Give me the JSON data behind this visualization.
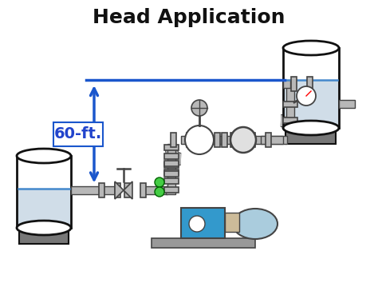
{
  "title": "Head Application",
  "title_fontsize": 18,
  "title_color": "#111111",
  "bg_color": "#ffffff",
  "blue_line_color": "#1a56cc",
  "water_color": "#d0dde8",
  "water_line_color": "#4488cc",
  "pipe_color": "#b8b8b8",
  "pipe_edge_color": "#444444",
  "pump_blue": "#3399cc",
  "pump_motor_color": "#aaccdd",
  "pump_body_color": "#5588bb",
  "green_dot": "#44cc44",
  "arrow_color": "#1a56cc",
  "label_text": "60-ft.",
  "label_fontsize": 14,
  "label_color": "#2244cc",
  "tank_edge": "#111111",
  "base_color": "#777777",
  "coupling_color": "#ccbb99"
}
